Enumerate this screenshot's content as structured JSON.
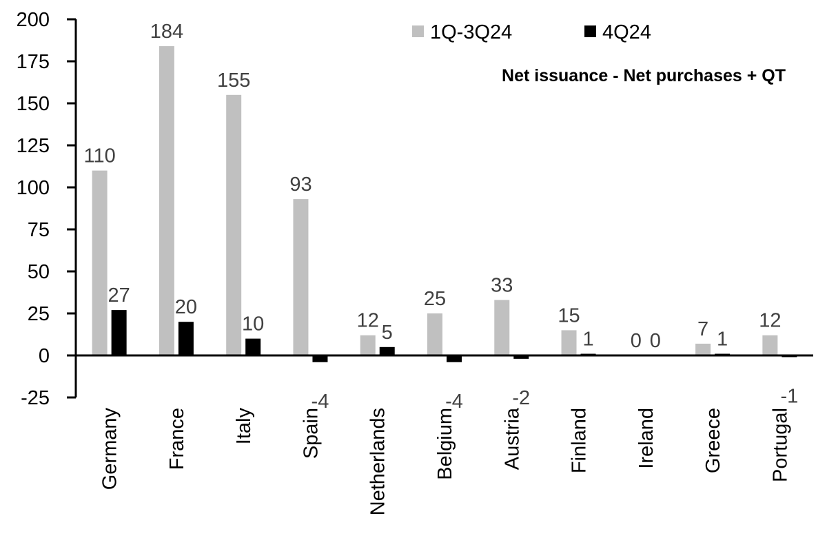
{
  "chart_data": {
    "type": "bar",
    "title": "Net issuance - Net purchases + QT",
    "categories": [
      "Germany",
      "France",
      "Italy",
      "Spain",
      "Netherlands",
      "Belgium",
      "Austria",
      "Finland",
      "Ireland",
      "Greece",
      "Portugal"
    ],
    "series": [
      {
        "name": "1Q-3Q24",
        "color": "#c0c0c0",
        "values": [
          110,
          184,
          155,
          93,
          12,
          25,
          33,
          15,
          0,
          7,
          12
        ]
      },
      {
        "name": "4Q24",
        "color": "#000000",
        "values": [
          27,
          20,
          10,
          -4,
          5,
          -4,
          -2,
          1,
          0,
          1,
          -1
        ]
      }
    ],
    "ylim": [
      -25,
      200
    ],
    "yticks": [
      -25,
      0,
      25,
      50,
      75,
      100,
      125,
      150,
      175,
      200
    ],
    "xlabel": "",
    "ylabel": "",
    "grid": false,
    "legend_position": "top-right",
    "data_labels": true
  }
}
